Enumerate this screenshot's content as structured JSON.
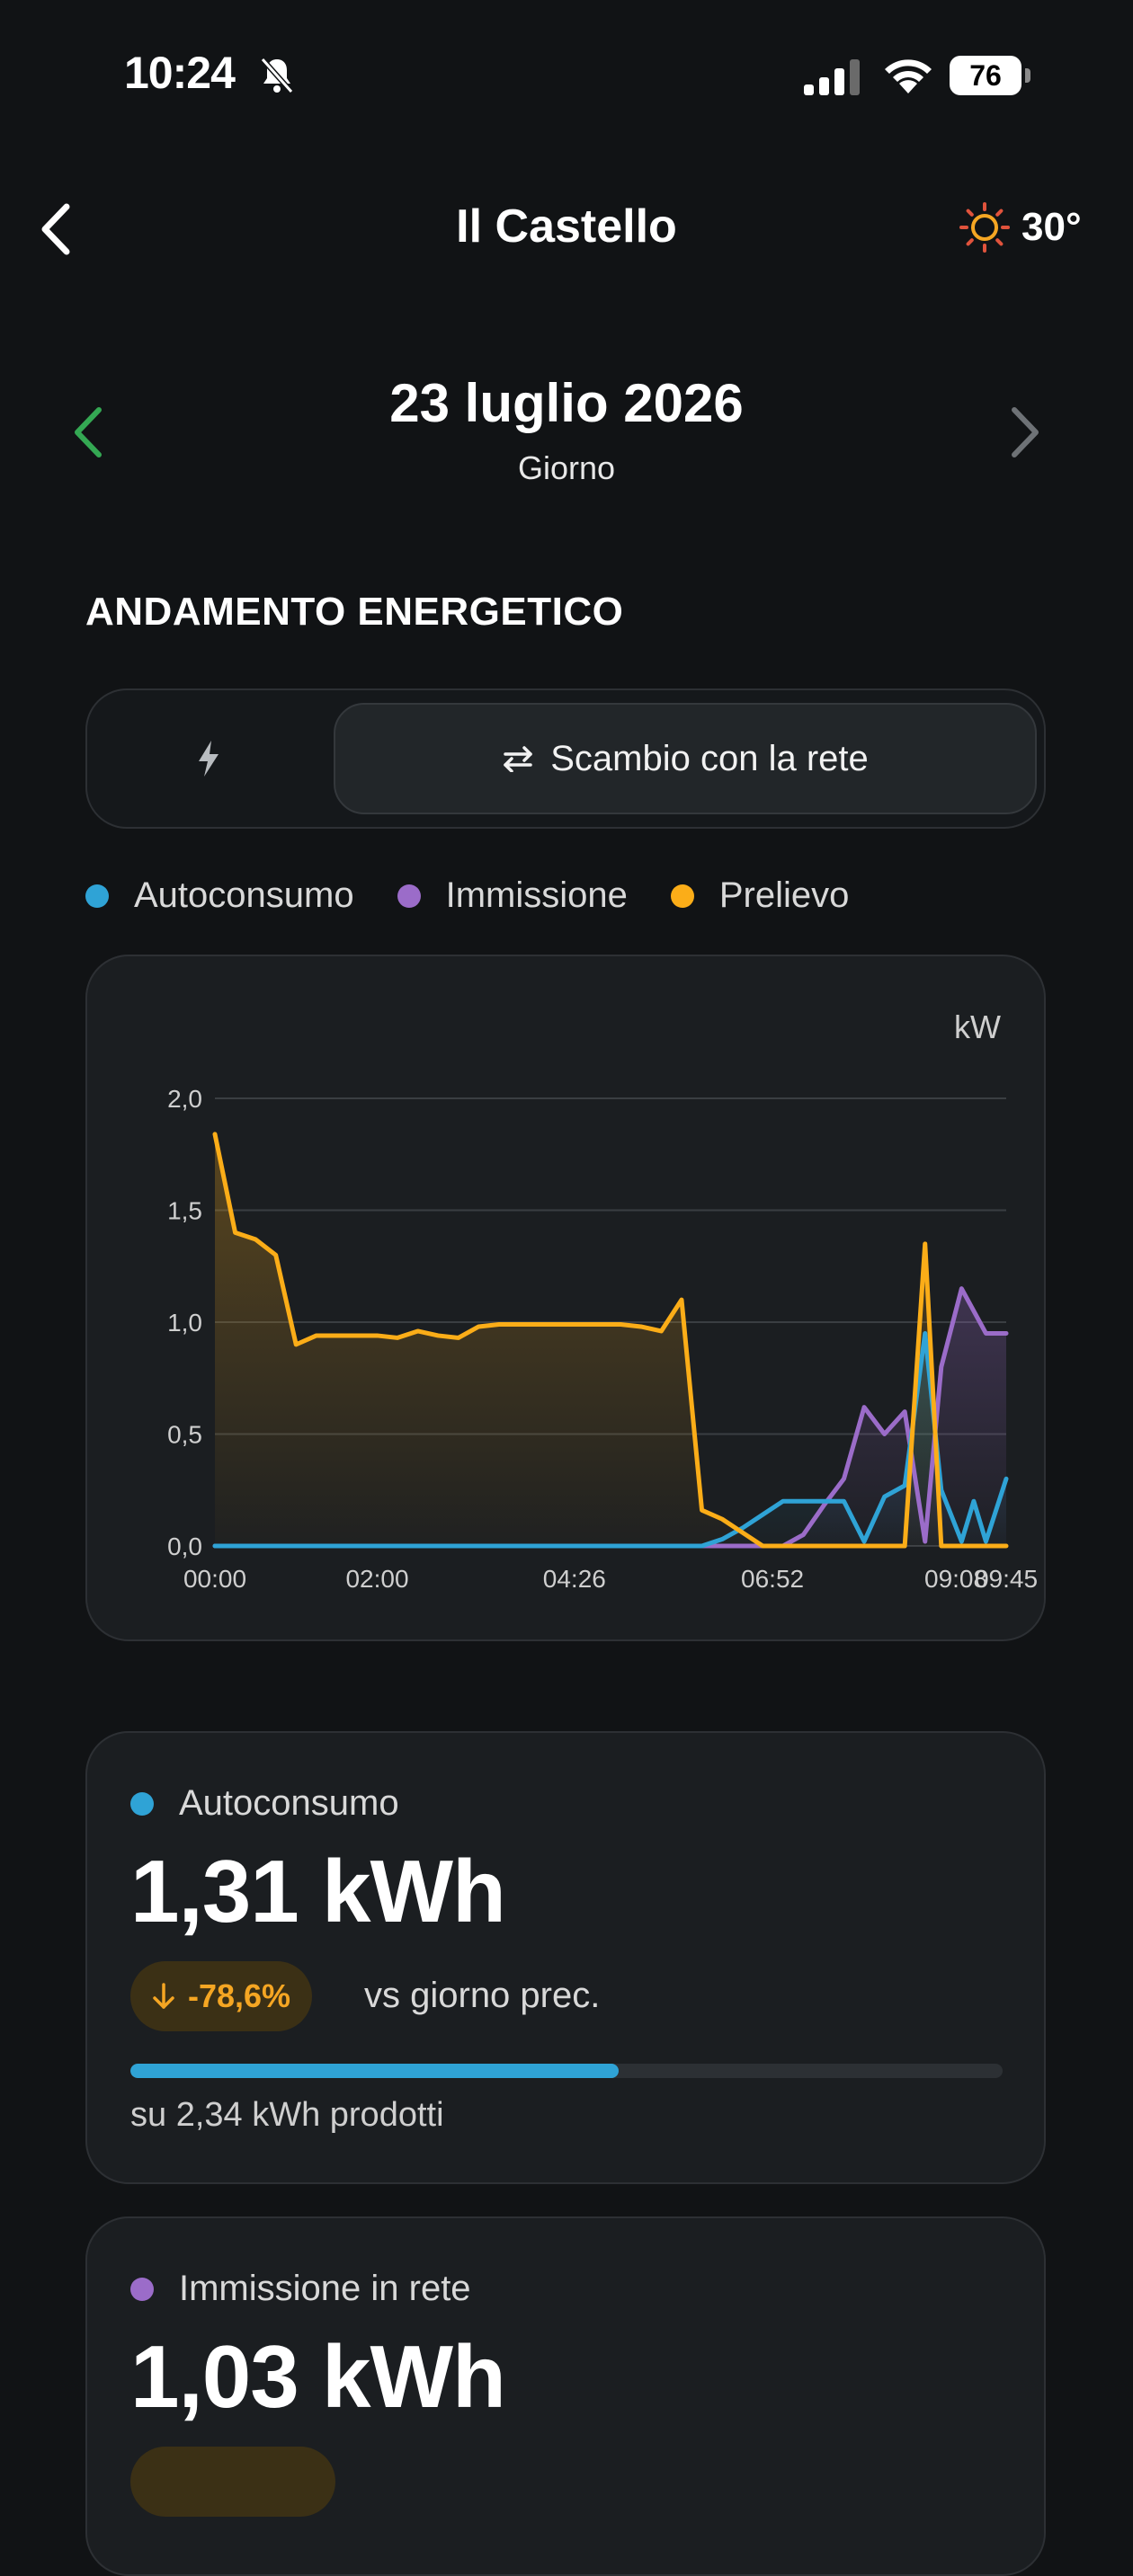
{
  "status_bar": {
    "time": "10:24",
    "battery": "76"
  },
  "header": {
    "title": "Il Castello",
    "temperature": "30°"
  },
  "date_nav": {
    "date": "23 luglio 2026",
    "period": "Giorno"
  },
  "section_title": "ANDAMENTO ENERGETICO",
  "toggle": {
    "options": [
      "",
      "Scambio con la rete"
    ],
    "selected_index": 1
  },
  "legend": [
    {
      "label": "Autoconsumo",
      "color": "#2fa3d6"
    },
    {
      "label": "Immissione",
      "color": "#9b6cc9"
    },
    {
      "label": "Prelievo",
      "color": "#fbad18"
    }
  ],
  "chart_data": {
    "type": "line",
    "unit": "kW",
    "ylim": [
      0,
      2
    ],
    "y_ticks": [
      "0,0",
      "0,5",
      "1,0",
      "1,5",
      "2,0"
    ],
    "x_tick_labels": [
      "00:00",
      "02:00",
      "04:26",
      "06:52",
      "09:08",
      "09:45"
    ],
    "xlim": [
      0,
      9.75
    ],
    "x_ticks_at": [
      0,
      2,
      4.43,
      6.87,
      9.13,
      9.75
    ],
    "grid": true,
    "series": [
      {
        "name": "Prelievo",
        "color": "#fbad18",
        "x": [
          0,
          0.25,
          0.5,
          0.75,
          1.0,
          1.25,
          1.5,
          1.75,
          2.0,
          2.25,
          2.5,
          2.75,
          3.0,
          3.25,
          3.5,
          3.75,
          4.0,
          4.25,
          4.5,
          4.75,
          5.0,
          5.25,
          5.5,
          5.75,
          6.0,
          6.25,
          6.5,
          6.75,
          7.0,
          7.25,
          7.5,
          7.75,
          8.0,
          8.25,
          8.5,
          8.75,
          8.95,
          9.2,
          9.35,
          9.5,
          9.75
        ],
        "values": [
          1.84,
          1.4,
          1.37,
          1.3,
          0.9,
          0.94,
          0.94,
          0.94,
          0.94,
          0.93,
          0.96,
          0.94,
          0.93,
          0.98,
          0.99,
          0.99,
          0.99,
          0.99,
          0.99,
          0.99,
          0.99,
          0.98,
          0.96,
          1.1,
          0.16,
          0.12,
          0.06,
          0.0,
          0.0,
          0.0,
          0.0,
          0.0,
          0.0,
          0.0,
          0.0,
          1.35,
          0.0,
          0.0,
          0.0,
          0.0,
          0.0
        ]
      },
      {
        "name": "Autoconsumo",
        "color": "#2fa3d6",
        "x": [
          0,
          5.75,
          6.0,
          6.25,
          6.5,
          6.75,
          7.0,
          7.25,
          7.5,
          7.75,
          8.0,
          8.25,
          8.5,
          8.75,
          8.95,
          9.2,
          9.35,
          9.5,
          9.75
        ],
        "values": [
          0,
          0,
          0.0,
          0.03,
          0.08,
          0.14,
          0.2,
          0.2,
          0.2,
          0.2,
          0.02,
          0.22,
          0.27,
          0.95,
          0.25,
          0.02,
          0.2,
          0.02,
          0.3
        ]
      },
      {
        "name": "Immissione",
        "color": "#9b6cc9",
        "x": [
          0,
          5.75,
          6.0,
          6.5,
          7.0,
          7.25,
          7.5,
          7.75,
          8.0,
          8.25,
          8.5,
          8.75,
          8.95,
          9.2,
          9.5,
          9.75
        ],
        "values": [
          0,
          0,
          0.0,
          0.0,
          0.0,
          0.05,
          0.18,
          0.3,
          0.62,
          0.5,
          0.6,
          0.02,
          0.8,
          1.15,
          0.95,
          0.95
        ]
      }
    ]
  },
  "stats": [
    {
      "label": "Autoconsumo",
      "color": "#2fa3d6",
      "value": "1,31 kWh",
      "delta": "-78,6%",
      "delta_note": "vs giorno prec.",
      "progress": 0.56,
      "progress_note": "su 2,34 kWh prodotti"
    },
    {
      "label": "Immissione in rete",
      "color": "#9b6cc9",
      "value": "1,03 kWh"
    }
  ]
}
